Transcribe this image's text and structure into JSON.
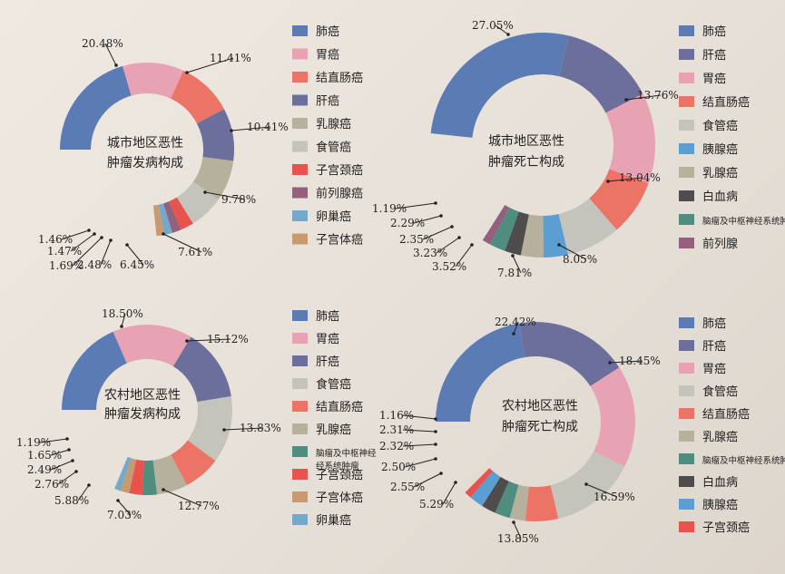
{
  "chart_data": [
    {
      "type": "pie",
      "title_lines": [
        "城市地区恶性",
        "肿瘤发病构成"
      ],
      "categories": [
        "肺癌",
        "胃癌",
        "结直肠癌",
        "肝癌",
        "乳腺癌",
        "食管癌",
        "子宫颈癌",
        "前列腺癌",
        "卵巢癌",
        "子宫体癌"
      ],
      "values": [
        20.48,
        11.41,
        10.41,
        9.78,
        7.61,
        6.45,
        2.48,
        1.69,
        1.47,
        1.46
      ],
      "labels": [
        "20.48%",
        "11.41%",
        "10.41%",
        "9.78%",
        "7.61%",
        "6.45%",
        "2.48%",
        "1.69%",
        "1.47%",
        "1.46%"
      ],
      "legend": [
        "肺癌",
        "胃癌",
        "结直肠癌",
        "肝癌",
        "乳腺癌",
        "食管癌",
        "子宫颈癌",
        "前列腺癌",
        "卵巢癌",
        "子宫体癌"
      ],
      "colors": [
        "#5b7bb5",
        "#e7a3b3",
        "#ec7467",
        "#6c6f9c",
        "#b5b19c",
        "#c4c3bc",
        "#e9534d",
        "#93607e",
        "#74a9c9",
        "#c99a6f"
      ]
    },
    {
      "type": "pie",
      "title_lines": [
        "城市地区恶性",
        "肿瘤死亡构成"
      ],
      "categories": [
        "肺癌",
        "肝癌",
        "胃癌",
        "结直肠癌",
        "食管癌",
        "胰腺癌",
        "乳腺癌",
        "白血病",
        "脑瘤及中枢神经系统肿瘤",
        "前列腺"
      ],
      "values": [
        27.05,
        13.76,
        13.04,
        8.05,
        7.81,
        3.52,
        3.23,
        2.35,
        2.29,
        1.19
      ],
      "labels": [
        "27.05%",
        "13.76%",
        "13.04%",
        "8.05%",
        "7.81%",
        "3.52%",
        "3.23%",
        "2.35%",
        "2.29%",
        "1.19%"
      ],
      "legend": [
        "肺癌",
        "肝癌",
        "胃癌",
        "结直肠癌",
        "食管癌",
        "胰腺癌",
        "乳腺癌",
        "白血病",
        "脑瘤及中枢神经系统肿瘤",
        "前列腺"
      ],
      "colors": [
        "#5b7bb5",
        "#6c6f9c",
        "#e7a3b3",
        "#ec7467",
        "#c4c3bc",
        "#5b9ed1",
        "#b5b19c",
        "#4f4c4e",
        "#4f8d7e",
        "#93607e"
      ]
    },
    {
      "type": "pie",
      "title_lines": [
        "农村地区恶性",
        "肿瘤发病构成"
      ],
      "categories": [
        "肺癌",
        "胃癌",
        "肝癌",
        "食管癌",
        "结直肠癌",
        "乳腺癌",
        "脑瘤及中枢神经系统肿瘤",
        "子宫颈癌",
        "子宫体癌",
        "卵巢癌"
      ],
      "values": [
        18.5,
        15.12,
        13.83,
        12.77,
        7.03,
        5.88,
        2.76,
        2.49,
        1.65,
        1.19
      ],
      "labels": [
        "18.50%",
        "15.12%",
        "13.83%",
        "12.77%",
        "7.03%",
        "5.88%",
        "2.76%",
        "2.49%",
        "1.65%",
        "1.19%"
      ],
      "legend": [
        "肺癌",
        "胃癌",
        "肝癌",
        "食管癌",
        "结直肠癌",
        "乳腺癌",
        "脑瘤及中枢神经\n经系统肿瘤",
        "子宫颈癌",
        "子宫体癌",
        "卵巢癌"
      ],
      "colors": [
        "#5b7bb5",
        "#e7a3b3",
        "#6c6f9c",
        "#c4c3bc",
        "#ec7467",
        "#b5b19c",
        "#4f8d7e",
        "#e9534d",
        "#c99a6f",
        "#74a9c9"
      ]
    },
    {
      "type": "pie",
      "title_lines": [
        "农村地区恶性",
        "肿瘤死亡构成"
      ],
      "categories": [
        "肺癌",
        "肝癌",
        "胃癌",
        "食管癌",
        "结直肠癌",
        "乳腺癌",
        "脑瘤及中枢神经系统肿瘤",
        "白血病",
        "胰腺癌",
        "子宫颈癌"
      ],
      "values": [
        22.42,
        18.45,
        16.59,
        13.85,
        5.29,
        2.55,
        2.5,
        2.32,
        2.31,
        1.16
      ],
      "labels": [
        "22.42%",
        "18.45%",
        "16.59%",
        "13.85%",
        "5.29%",
        "2.55%",
        "2.50%",
        "2.32%",
        "2.31%",
        "1.16%"
      ],
      "legend": [
        "肺癌",
        "肝癌",
        "胃癌",
        "食管癌",
        "结直肠癌",
        "乳腺癌",
        "脑瘤及中枢神经系统肿瘤",
        "白血病",
        "胰腺癌",
        "子宫颈癌"
      ],
      "colors": [
        "#5b7bb5",
        "#6c6f9c",
        "#e7a3b3",
        "#c4c3bc",
        "#ec7467",
        "#b5b19c",
        "#4f8d7e",
        "#4f4c4e",
        "#5b9ed1",
        "#e9534d"
      ]
    }
  ]
}
